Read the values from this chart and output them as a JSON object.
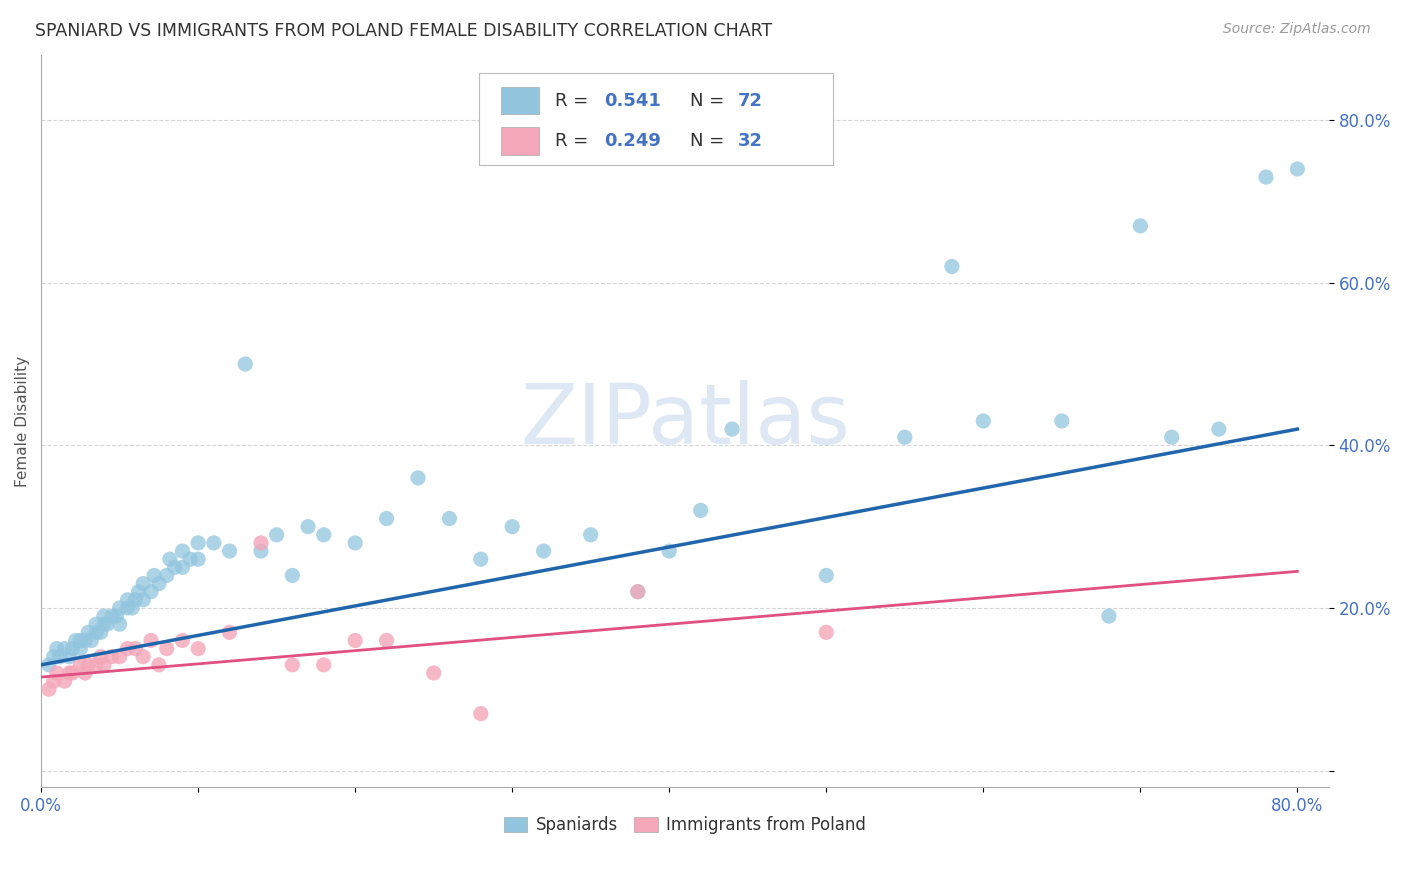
{
  "title": "SPANIARD VS IMMIGRANTS FROM POLAND FEMALE DISABILITY CORRELATION CHART",
  "source": "Source: ZipAtlas.com",
  "ylabel": "Female Disability",
  "xlim": [
    0.0,
    0.82
  ],
  "ylim": [
    -0.02,
    0.88
  ],
  "xtick_positions": [
    0.0,
    0.1,
    0.2,
    0.3,
    0.4,
    0.5,
    0.6,
    0.7,
    0.8
  ],
  "xticklabels": [
    "0.0%",
    "",
    "",
    "",
    "",
    "",
    "",
    "",
    "80.0%"
  ],
  "ytick_positions": [
    0.0,
    0.2,
    0.4,
    0.6,
    0.8
  ],
  "yticklabels": [
    "",
    "20.0%",
    "40.0%",
    "60.0%",
    "80.0%"
  ],
  "blue_color": "#92c5de",
  "pink_color": "#f4a7b9",
  "blue_line_color": "#2166ac",
  "pink_line_color": "#e05080",
  "title_color": "#333333",
  "axis_label_color": "#555555",
  "tick_color": "#4472c4",
  "legend_color": "#4472c4",
  "watermark_color": "#c8d8ee",
  "spaniards_x": [
    0.005,
    0.008,
    0.01,
    0.012,
    0.015,
    0.018,
    0.02,
    0.022,
    0.025,
    0.025,
    0.028,
    0.03,
    0.032,
    0.035,
    0.035,
    0.038,
    0.04,
    0.04,
    0.042,
    0.045,
    0.048,
    0.05,
    0.05,
    0.055,
    0.055,
    0.058,
    0.06,
    0.062,
    0.065,
    0.065,
    0.07,
    0.072,
    0.075,
    0.08,
    0.082,
    0.085,
    0.09,
    0.09,
    0.095,
    0.1,
    0.1,
    0.11,
    0.12,
    0.13,
    0.14,
    0.15,
    0.16,
    0.17,
    0.18,
    0.2,
    0.22,
    0.24,
    0.26,
    0.28,
    0.3,
    0.32,
    0.35,
    0.38,
    0.4,
    0.42,
    0.44,
    0.5,
    0.55,
    0.58,
    0.6,
    0.65,
    0.68,
    0.7,
    0.72,
    0.75,
    0.78,
    0.8
  ],
  "spaniards_y": [
    0.13,
    0.14,
    0.15,
    0.14,
    0.15,
    0.14,
    0.15,
    0.16,
    0.15,
    0.16,
    0.16,
    0.17,
    0.16,
    0.17,
    0.18,
    0.17,
    0.18,
    0.19,
    0.18,
    0.19,
    0.19,
    0.2,
    0.18,
    0.2,
    0.21,
    0.2,
    0.21,
    0.22,
    0.21,
    0.23,
    0.22,
    0.24,
    0.23,
    0.24,
    0.26,
    0.25,
    0.25,
    0.27,
    0.26,
    0.26,
    0.28,
    0.28,
    0.27,
    0.5,
    0.27,
    0.29,
    0.24,
    0.3,
    0.29,
    0.28,
    0.31,
    0.36,
    0.31,
    0.26,
    0.3,
    0.27,
    0.29,
    0.22,
    0.27,
    0.32,
    0.42,
    0.24,
    0.41,
    0.62,
    0.43,
    0.43,
    0.19,
    0.67,
    0.41,
    0.42,
    0.73,
    0.74
  ],
  "poland_x": [
    0.005,
    0.008,
    0.01,
    0.015,
    0.018,
    0.02,
    0.025,
    0.028,
    0.03,
    0.035,
    0.038,
    0.04,
    0.045,
    0.05,
    0.055,
    0.06,
    0.065,
    0.07,
    0.075,
    0.08,
    0.09,
    0.1,
    0.12,
    0.14,
    0.16,
    0.18,
    0.2,
    0.22,
    0.25,
    0.28,
    0.38,
    0.5
  ],
  "poland_y": [
    0.1,
    0.11,
    0.12,
    0.11,
    0.12,
    0.12,
    0.13,
    0.12,
    0.13,
    0.13,
    0.14,
    0.13,
    0.14,
    0.14,
    0.15,
    0.15,
    0.14,
    0.16,
    0.13,
    0.15,
    0.16,
    0.15,
    0.17,
    0.28,
    0.13,
    0.13,
    0.16,
    0.16,
    0.12,
    0.07,
    0.22,
    0.17
  ],
  "blue_trend_x": [
    0.0,
    0.8
  ],
  "blue_trend_y": [
    0.13,
    0.42
  ],
  "pink_trend_x": [
    0.0,
    0.8
  ],
  "pink_trend_y": [
    0.115,
    0.245
  ]
}
